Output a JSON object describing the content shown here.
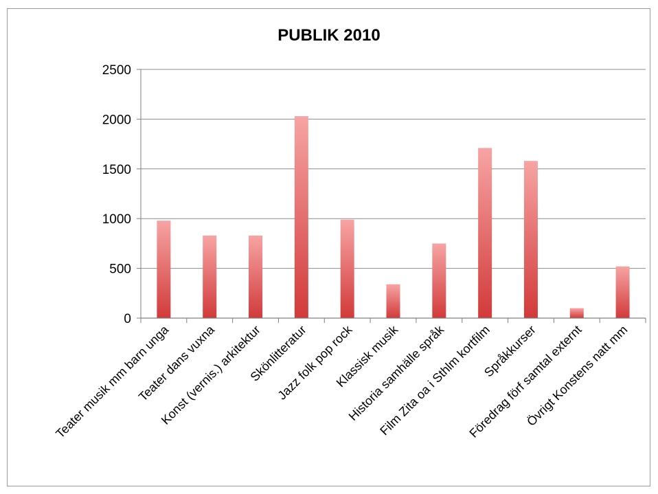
{
  "chart_data": {
    "type": "bar",
    "title": "PUBLIK 2010",
    "xlabel": "",
    "ylabel": "",
    "ylim": [
      0,
      2500
    ],
    "yticks": [
      0,
      500,
      1000,
      1500,
      2000,
      2500
    ],
    "grid": true,
    "legend": "none",
    "bar_color_top": "#f7a4a4",
    "bar_color_bottom": "#d23a3a",
    "categories": [
      "Teater musik mm barn unga",
      "Teater dans vuxna",
      "Konst (vernis.) arkitektur",
      "Skönlitteratur",
      "Jazz folk pop rock",
      "Klassisk musik",
      "Historia samhälle språk",
      "Film Zita oa i Sthlm kortfilm",
      "Språkkurser",
      "Föredrag förf samtal externt",
      "Övrigt Konstens natt mm"
    ],
    "values": [
      980,
      830,
      830,
      2030,
      990,
      340,
      750,
      1710,
      1580,
      100,
      520
    ]
  }
}
